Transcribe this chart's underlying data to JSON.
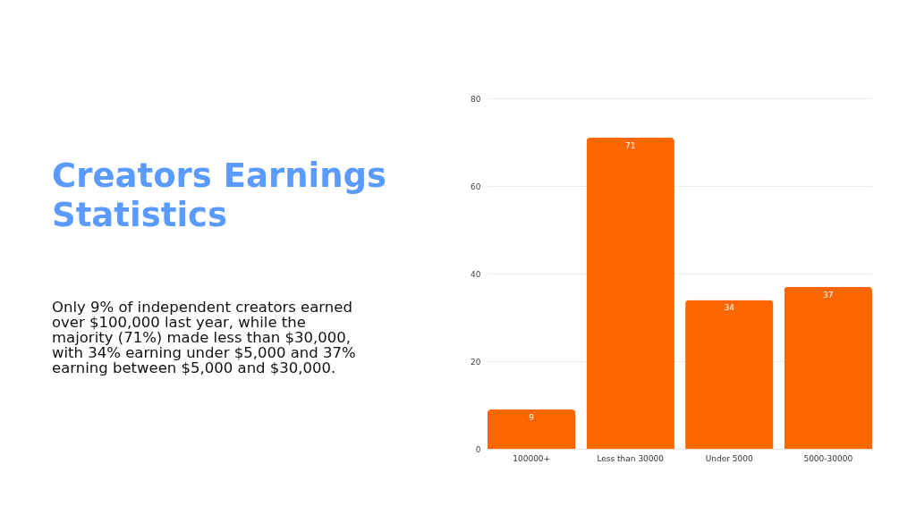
{
  "chart_data": {
    "type": "bar",
    "title": "Creators Earnings Statistics",
    "subtitle": "Only 9% of independent creators earned over $100,000 last year, while the majority (71%) made less than $30,000, with 34% earning under $5,000 and 37% earning between $5,000 and $30,000.",
    "categories": [
      "100000+",
      "Less than 30000",
      "Under 5000",
      "5000-30000"
    ],
    "values": [
      9,
      71,
      34,
      37
    ],
    "color": "#ff6600",
    "ylim": [
      0,
      80
    ],
    "yticks": [
      0,
      20,
      40,
      60,
      80
    ],
    "grid": "y",
    "data_labels": true
  }
}
